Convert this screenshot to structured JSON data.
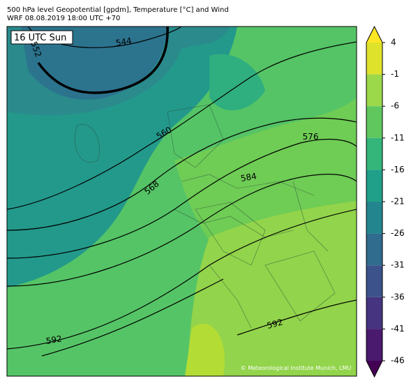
{
  "header": {
    "line1": "500 hPa level Geopotential [gpdm], Temperature [°C] and Wind",
    "line2": "WRF 08.08.2019 18:00 UTC +70"
  },
  "map": {
    "time_label": "16 UTC Sun",
    "contour_labels": [
      "552",
      "544",
      "560",
      "568",
      "576",
      "584",
      "592",
      "592"
    ],
    "credit": "© Meteorological Institute Munich, LMU"
  },
  "colorbar": {
    "ticks": [
      4,
      -1,
      -6,
      -11,
      -16,
      -21,
      -26,
      -31,
      -36,
      -41,
      -46
    ],
    "band_colors": [
      "#dfe22a",
      "#9bd84a",
      "#5fc75e",
      "#34b57a",
      "#20a088",
      "#23868e",
      "#2f6c8e",
      "#3b528b",
      "#463480",
      "#4a1a6e"
    ],
    "over_color": "#fde725",
    "under_color": "#440154"
  }
}
